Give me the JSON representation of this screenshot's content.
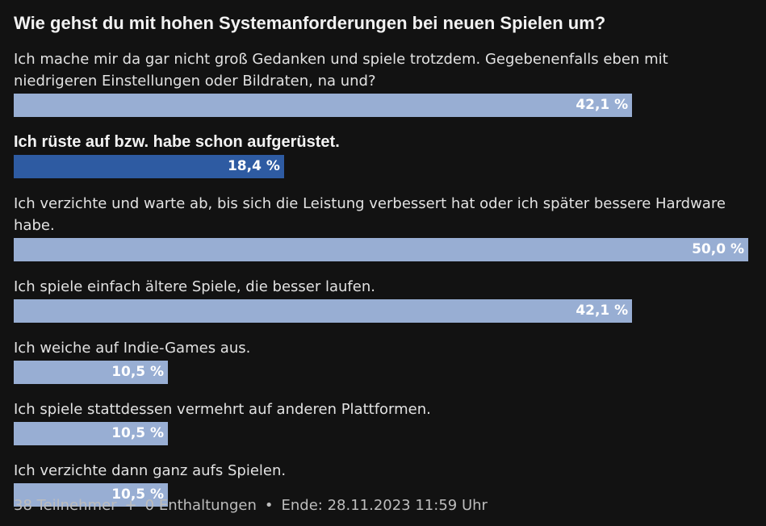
{
  "poll": {
    "title": "Wie gehst du mit hohen Systemanforderungen bei neuen Spielen um?",
    "options": [
      {
        "label": "Ich mache mir da gar nicht groß Gedanken und spiele trotzdem. Gegebenenfalls eben mit niedrigeren Einstellungen oder Bildraten, na und?",
        "percent_label": "42,1 %",
        "fraction": 0.842,
        "voted": false
      },
      {
        "label": "Ich rüste auf bzw. habe schon aufgerüstet.",
        "percent_label": "18,4 %",
        "fraction": 0.368,
        "voted": true
      },
      {
        "label": "Ich verzichte und warte ab, bis sich die Leistung verbessert hat oder ich später bessere Hardware habe.",
        "percent_label": "50,0 %",
        "fraction": 1.0,
        "voted": false
      },
      {
        "label": "Ich spiele einfach ältere Spiele, die besser laufen.",
        "percent_label": "42,1 %",
        "fraction": 0.842,
        "voted": false
      },
      {
        "label": "Ich weiche auf Indie-Games aus.",
        "percent_label": "10,5 %",
        "fraction": 0.21,
        "voted": false
      },
      {
        "label": "Ich spiele stattdessen vermehrt auf anderen Plattformen.",
        "percent_label": "10,5 %",
        "fraction": 0.21,
        "voted": false
      },
      {
        "label": "Ich verzichte dann ganz aufs Spielen.",
        "percent_label": "10,5 %",
        "fraction": 0.21,
        "voted": false
      }
    ],
    "footer": {
      "participants": "38 Teilnehmer",
      "separator_plus": "+",
      "abstentions": "0 Enthaltungen",
      "separator_dot": "•",
      "end": "Ende: 28.11.2023 11:59 Uhr"
    }
  },
  "colors": {
    "background": "#121212",
    "bar": "#98aed3",
    "bar_voted": "#2e5ba2"
  }
}
